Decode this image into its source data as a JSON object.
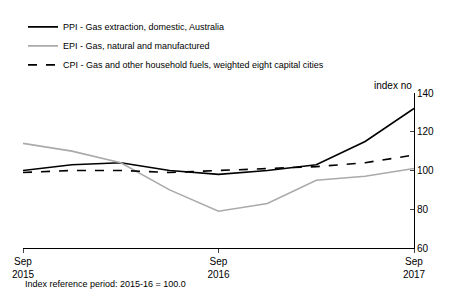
{
  "chart_data": {
    "type": "line",
    "ylabel": "index no",
    "footnote": "Index reference period: 2015-16 = 100.0",
    "categories": [
      "Sep\n2015",
      null,
      null,
      null,
      "Sep\n2016",
      null,
      null,
      null,
      "Sep\n2017"
    ],
    "series": [
      {
        "name": "PPI - Gas extraction, domestic, Australia",
        "color": "#000000",
        "line_style": "solid",
        "values": [
          100,
          103,
          104,
          100,
          98,
          100,
          103,
          115,
          132
        ]
      },
      {
        "name": "EPI - Gas, natural and manufactured",
        "color": "#aaaaaa",
        "line_style": "solid",
        "values": [
          114,
          110,
          104,
          90,
          79,
          83,
          95,
          97,
          101
        ]
      },
      {
        "name": "CPI - Gas and other household fuels, weighted eight capital cities",
        "color": "#000000",
        "line_style": "dashed",
        "values": [
          99,
          100,
          100,
          99,
          100,
          101,
          102,
          104,
          108
        ]
      }
    ],
    "ylim": [
      60,
      140
    ],
    "yticks": [
      60,
      80,
      100,
      120,
      140
    ],
    "grid": false,
    "legend": "upper left"
  }
}
